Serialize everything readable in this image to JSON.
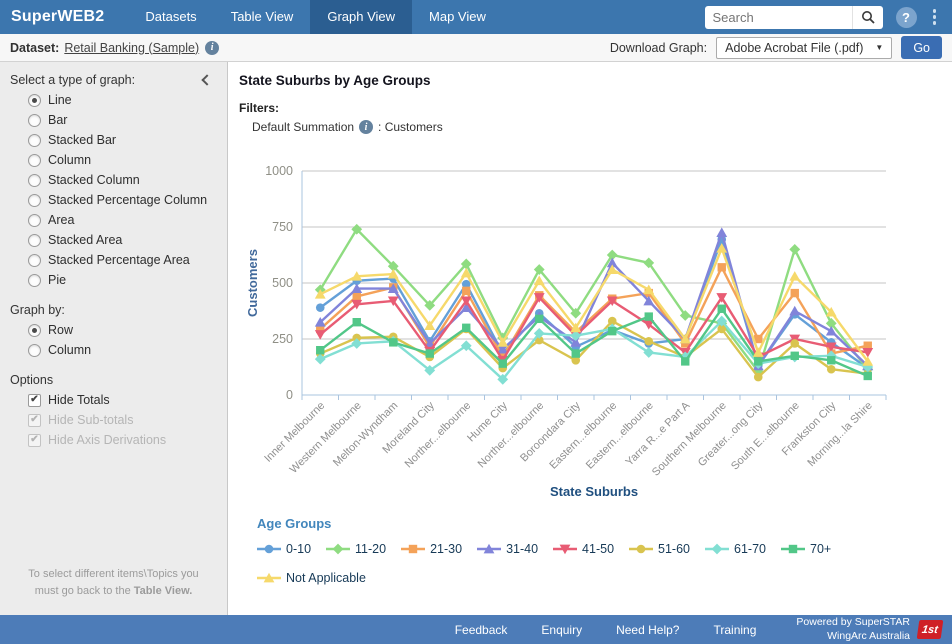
{
  "navbar": {
    "brand": "SuperWEB2",
    "tabs": [
      {
        "label": "Datasets",
        "active": false
      },
      {
        "label": "Table View",
        "active": false
      },
      {
        "label": "Graph View",
        "active": true
      },
      {
        "label": "Map View",
        "active": false
      }
    ],
    "search_placeholder": "Search"
  },
  "icons": {
    "help": "?",
    "info": "i",
    "dropdown_caret": "▼",
    "check": "✔"
  },
  "dataset_bar": {
    "label": "Dataset:",
    "dataset_link": "Retail Banking (Sample)",
    "download_label": "Download Graph:",
    "download_selected": "Adobe Acrobat File (.pdf)",
    "go_label": "Go"
  },
  "sidebar": {
    "graph_type_label": "Select a type of graph:",
    "graph_types": [
      "Line",
      "Bar",
      "Stacked Bar",
      "Column",
      "Stacked Column",
      "Stacked Percentage Column",
      "Area",
      "Stacked Area",
      "Stacked Percentage Area",
      "Pie"
    ],
    "graph_type_selected": "Line",
    "graph_by_label": "Graph by:",
    "graph_by_options": [
      "Row",
      "Column"
    ],
    "graph_by_selected": "Row",
    "options_label": "Options",
    "options": [
      {
        "label": "Hide Totals",
        "checked": true,
        "disabled": false
      },
      {
        "label": "Hide Sub-totals",
        "checked": true,
        "disabled": true
      },
      {
        "label": "Hide Axis Derivations",
        "checked": true,
        "disabled": true
      }
    ],
    "note_line": "To select different items\\Topics you must go back to the",
    "note_bold": "Table View."
  },
  "main": {
    "title": "State Suburbs by Age Groups",
    "filters_label": "Filters:",
    "filter_name": "Default Summation",
    "filter_value": ": Customers"
  },
  "chart_data": {
    "type": "line",
    "title": "State Suburbs by Age Groups",
    "xlabel": "State Suburbs",
    "ylabel": "Customers",
    "ylim": [
      0,
      1000
    ],
    "yticks": [
      0,
      250,
      500,
      750,
      1000
    ],
    "grid": true,
    "legend_title": "Age Groups",
    "legend_position": "bottom",
    "categories": [
      "Inner Melbourne",
      "Western Melbourne",
      "Melton-Wyndham",
      "Moreland City",
      "Norther...elbourne",
      "Hume City",
      "Norther...elbourne",
      "Boroondara City",
      "Eastern...elbourne",
      "Eastern...elbourne",
      "Yarra R...e Part A",
      "Southern Melbourne",
      "Greater...ong City",
      "South E...elbourne",
      "Frankston City",
      "Morning...la Shire"
    ],
    "series": [
      {
        "name": "0-10",
        "color": "#64a0d8",
        "marker": "circle",
        "values": [
          390,
          510,
          520,
          240,
          495,
          185,
          365,
          215,
          290,
          230,
          250,
          695,
          130,
          360,
          235,
          120
        ]
      },
      {
        "name": "11-20",
        "color": "#8fdc81",
        "marker": "diamond",
        "values": [
          470,
          740,
          575,
          400,
          585,
          255,
          560,
          365,
          625,
          590,
          355,
          320,
          105,
          650,
          320,
          115
        ]
      },
      {
        "name": "21-30",
        "color": "#f4a259",
        "marker": "square",
        "values": [
          295,
          440,
          480,
          215,
          465,
          170,
          445,
          280,
          430,
          455,
          230,
          570,
          250,
          455,
          185,
          220
        ]
      },
      {
        "name": "31-40",
        "color": "#8184da",
        "marker": "triangle",
        "values": [
          325,
          475,
          475,
          230,
          390,
          205,
          350,
          235,
          590,
          420,
          250,
          725,
          130,
          375,
          285,
          130
        ]
      },
      {
        "name": "41-50",
        "color": "#e85c74",
        "marker": "triangle-down",
        "values": [
          270,
          405,
          420,
          195,
          420,
          155,
          435,
          265,
          420,
          315,
          190,
          435,
          170,
          250,
          215,
          190
        ]
      },
      {
        "name": "51-60",
        "color": "#d9c44f",
        "marker": "circle",
        "values": [
          185,
          255,
          260,
          170,
          295,
          120,
          245,
          155,
          330,
          240,
          170,
          295,
          80,
          230,
          115,
          95
        ]
      },
      {
        "name": "61-70",
        "color": "#82dfd3",
        "marker": "diamond",
        "values": [
          160,
          230,
          240,
          110,
          220,
          70,
          275,
          265,
          295,
          190,
          170,
          330,
          140,
          170,
          175,
          125
        ]
      },
      {
        "name": "70+",
        "color": "#52c788",
        "marker": "square",
        "values": [
          200,
          325,
          235,
          185,
          300,
          140,
          340,
          185,
          285,
          350,
          150,
          385,
          150,
          175,
          155,
          85
        ]
      },
      {
        "name": "Not Applicable",
        "color": "#f6d96b",
        "marker": "triangle",
        "values": [
          450,
          530,
          540,
          310,
          545,
          235,
          510,
          300,
          560,
          470,
          250,
          655,
          190,
          530,
          370,
          150
        ]
      }
    ]
  },
  "footer": {
    "links": [
      "Feedback",
      "Enquiry",
      "Need Help?",
      "Training"
    ],
    "powered_by_line1": "Powered by SuperSTAR",
    "powered_by_line2": "WingArc Australia",
    "logo": "1st"
  }
}
